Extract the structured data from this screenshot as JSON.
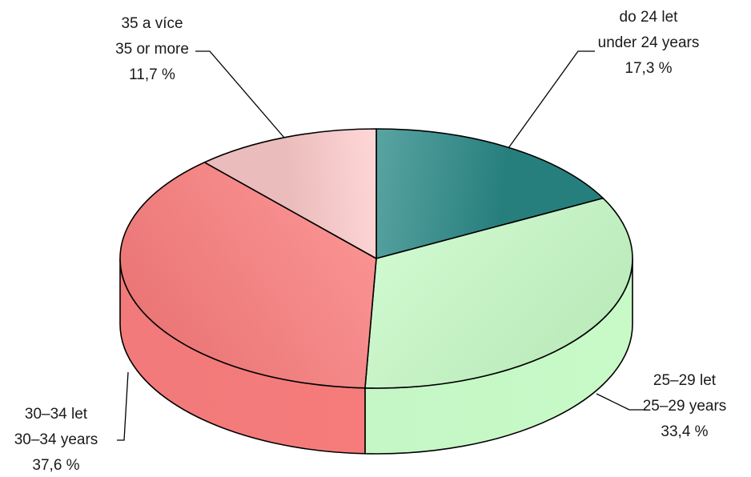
{
  "chart_data": {
    "type": "pie",
    "title": "",
    "slices": [
      {
        "label_cs": "do 24 let",
        "label_en": "under 24 years",
        "value": 17.3,
        "value_label": "17,3 %",
        "color": "#2a8a88"
      },
      {
        "label_cs": "25–29 let",
        "label_en": "25–29 years",
        "value": 33.4,
        "value_label": "33,4 %",
        "color": "#ccffcc"
      },
      {
        "label_cs": "30–34 let",
        "label_en": "30–34 years",
        "value": 37.6,
        "value_label": "37,6 %",
        "color": "#ff8080"
      },
      {
        "label_cs": "35 a více",
        "label_en": "35 or more",
        "value": 11.7,
        "value_label": "11,7 %",
        "color": "#ffcccc"
      }
    ]
  }
}
